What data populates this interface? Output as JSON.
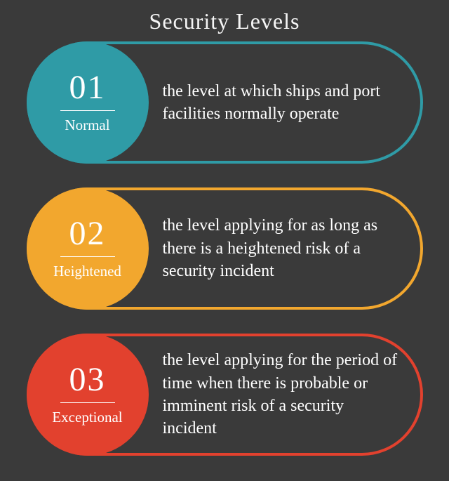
{
  "title": "Security Levels",
  "background_color": "#3a3a3a",
  "title_color": "#f5f5f5",
  "title_fontsize": 32,
  "text_color": "#ffffff",
  "desc_fontsize": 24,
  "num_fontsize": 48,
  "label_fontsize": 21,
  "pill_width": 565,
  "pill_height": 174,
  "pill_border_width": 4,
  "pill_border_radius": 90,
  "circle_diameter": 174,
  "items": [
    {
      "number": "01",
      "label": "Normal",
      "description": "the level at which ships and port facilities normally operate",
      "circle_color": "#2f9ba6",
      "border_color": "#2f9ba6"
    },
    {
      "number": "02",
      "label": "Heightened",
      "description": "the level applying for as long as there is a heightened risk of a security incident",
      "circle_color": "#f2a72e",
      "border_color": "#f2a72e"
    },
    {
      "number": "03",
      "label": "Exceptional",
      "description": "the level applying for the period of time when there is probable or imminent risk of a security incident",
      "circle_color": "#e2412e",
      "border_color": "#e2412e"
    }
  ]
}
